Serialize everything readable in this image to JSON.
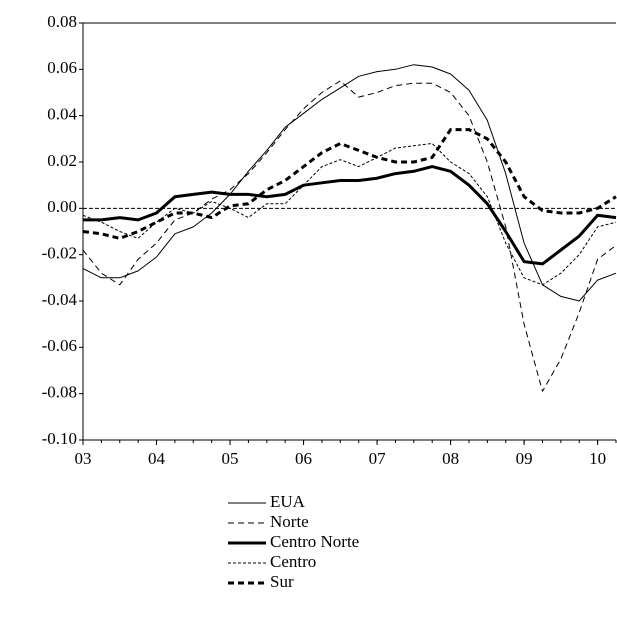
{
  "chart_data": {
    "type": "line",
    "x": [
      3,
      3.25,
      3.5,
      3.75,
      4,
      4.25,
      4.5,
      4.75,
      5,
      5.25,
      5.5,
      5.75,
      6,
      6.25,
      6.5,
      6.75,
      7,
      7.25,
      7.5,
      7.75,
      8,
      8.25,
      8.5,
      8.75,
      9,
      9.25,
      9.5,
      9.75,
      10,
      10.25
    ],
    "xlim": [
      3,
      10.25
    ],
    "xticks": [
      {
        "value": 3,
        "label": "03"
      },
      {
        "value": 4,
        "label": "04"
      },
      {
        "value": 5,
        "label": "05"
      },
      {
        "value": 6,
        "label": "06"
      },
      {
        "value": 7,
        "label": "07"
      },
      {
        "value": 8,
        "label": "08"
      },
      {
        "value": 9,
        "label": "09"
      },
      {
        "value": 10,
        "label": "10"
      }
    ],
    "ylim": [
      -0.1,
      0.08
    ],
    "yticks": [
      {
        "value": -0.1,
        "label": "-0.10"
      },
      {
        "value": -0.08,
        "label": "-0.08"
      },
      {
        "value": -0.06,
        "label": "-0.06"
      },
      {
        "value": -0.04,
        "label": "-0.04"
      },
      {
        "value": -0.02,
        "label": "-0.02"
      },
      {
        "value": 0,
        "label": "0.00"
      },
      {
        "value": 0.02,
        "label": "0.02"
      },
      {
        "value": 0.04,
        "label": "0.04"
      },
      {
        "value": 0.06,
        "label": "0.06"
      },
      {
        "value": 0.08,
        "label": "0.08"
      }
    ],
    "series": [
      {
        "name": "EUA",
        "color": "#000000",
        "linewidth": 1,
        "dash": "solid",
        "values": [
          -0.026,
          -0.03,
          -0.03,
          -0.027,
          -0.021,
          -0.011,
          -0.008,
          -0.002,
          0.006,
          0.016,
          0.025,
          0.035,
          0.041,
          0.047,
          0.052,
          0.057,
          0.059,
          0.06,
          0.062,
          0.061,
          0.058,
          0.051,
          0.038,
          0.015,
          -0.015,
          -0.033,
          -0.038,
          -0.04,
          -0.031,
          -0.028
        ]
      },
      {
        "name": "Norte",
        "color": "#000000",
        "linewidth": 1,
        "dash": "dashed",
        "values": [
          -0.018,
          -0.028,
          -0.033,
          -0.022,
          -0.015,
          -0.005,
          -0.002,
          0.004,
          0.008,
          0.015,
          0.024,
          0.034,
          0.043,
          0.05,
          0.055,
          0.048,
          0.05,
          0.053,
          0.054,
          0.054,
          0.05,
          0.04,
          0.02,
          -0.008,
          -0.05,
          -0.079,
          -0.065,
          -0.045,
          -0.022,
          -0.016
        ]
      },
      {
        "name": "Centro Norte",
        "color": "#000000",
        "linewidth": 3,
        "dash": "solid",
        "values": [
          -0.005,
          -0.005,
          -0.004,
          -0.005,
          -0.002,
          0.005,
          0.006,
          0.007,
          0.006,
          0.006,
          0.005,
          0.006,
          0.01,
          0.011,
          0.012,
          0.012,
          0.013,
          0.015,
          0.016,
          0.018,
          0.016,
          0.01,
          0.002,
          -0.01,
          -0.023,
          -0.024,
          -0.018,
          -0.012,
          -0.003,
          -0.004
        ]
      },
      {
        "name": "Centro",
        "color": "#000000",
        "linewidth": 1,
        "dash": "dotted",
        "values": [
          -0.003,
          -0.006,
          -0.01,
          -0.013,
          -0.006,
          0.0,
          -0.002,
          0.003,
          0.0,
          -0.004,
          0.002,
          0.002,
          0.01,
          0.018,
          0.021,
          0.018,
          0.022,
          0.026,
          0.027,
          0.028,
          0.02,
          0.015,
          0.005,
          -0.015,
          -0.03,
          -0.033,
          -0.028,
          -0.02,
          -0.008,
          -0.006
        ]
      },
      {
        "name": "Sur",
        "color": "#000000",
        "linewidth": 3,
        "dash": "dashed",
        "values": [
          -0.01,
          -0.011,
          -0.013,
          -0.01,
          -0.006,
          -0.002,
          -0.002,
          -0.004,
          0.001,
          0.002,
          0.008,
          0.012,
          0.018,
          0.024,
          0.028,
          0.025,
          0.022,
          0.02,
          0.02,
          0.022,
          0.034,
          0.034,
          0.03,
          0.02,
          0.005,
          -0.001,
          -0.002,
          -0.002,
          0.0,
          0.005
        ]
      }
    ]
  }
}
